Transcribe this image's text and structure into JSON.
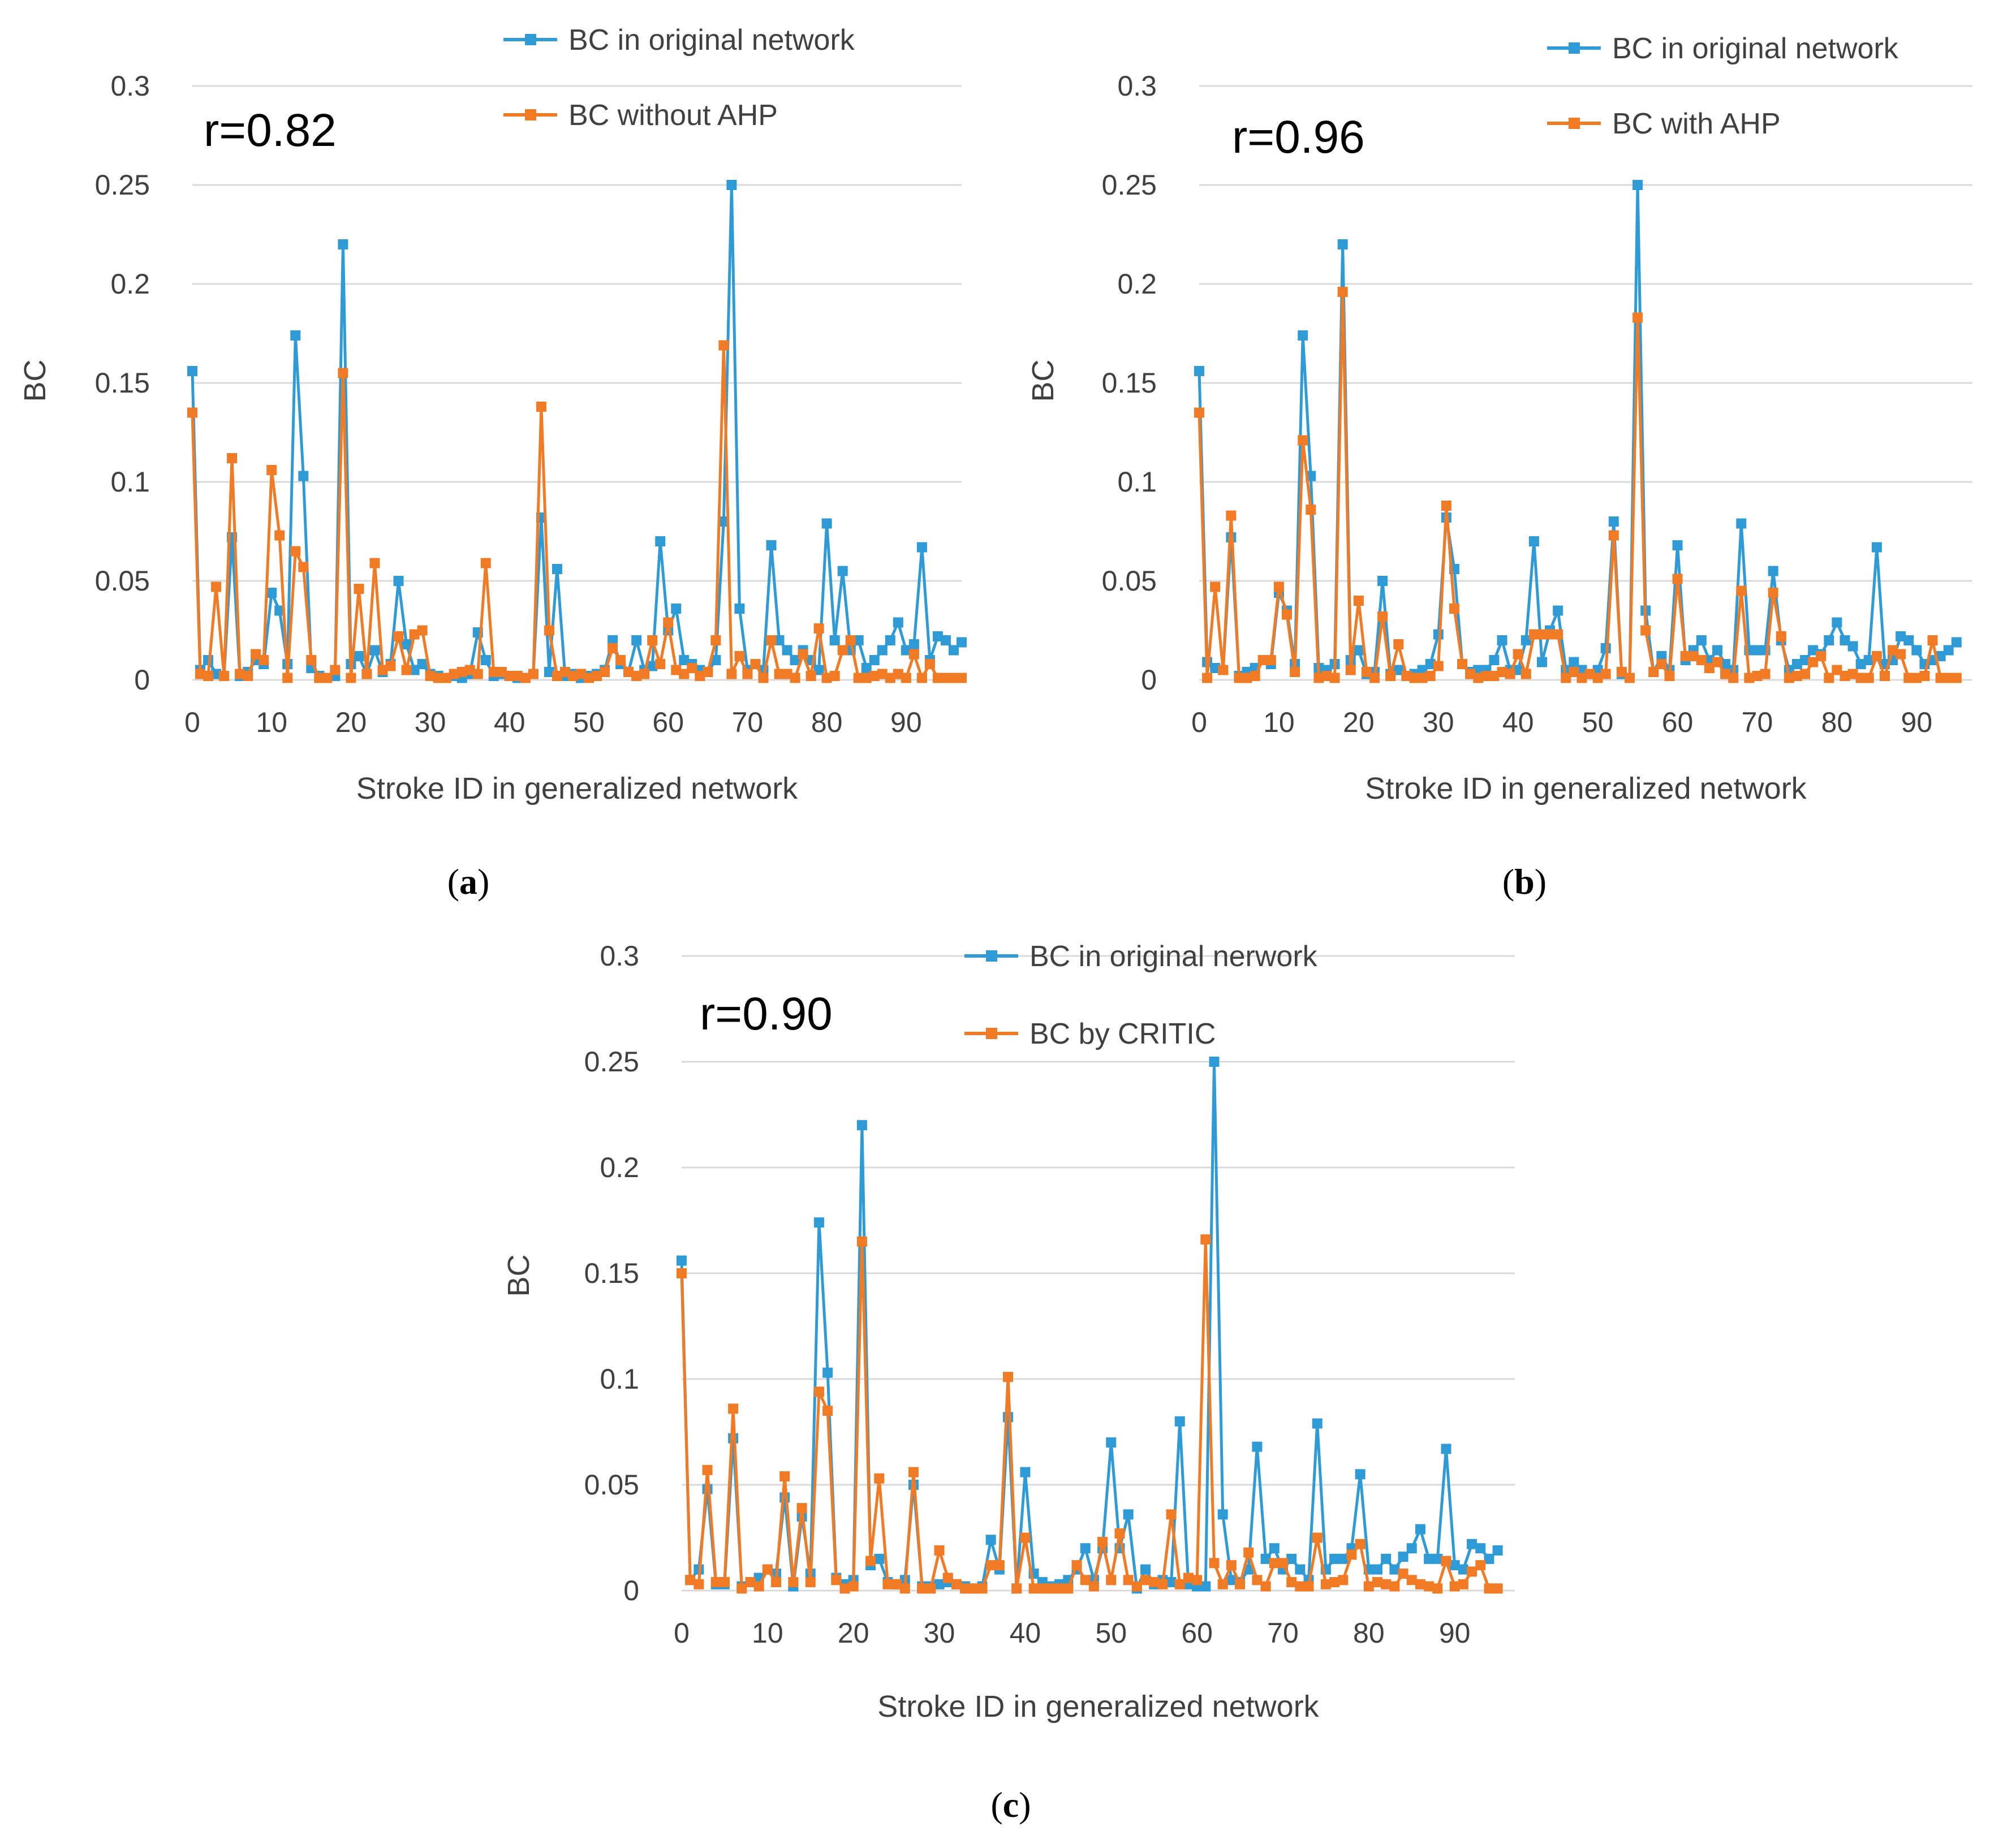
{
  "colors": {
    "original": "#2e9bd6",
    "comparison": "#f07b24",
    "grid": "#d9d9d9",
    "text": "#404040"
  },
  "chart_data": [
    {
      "type": "line",
      "panel": "a",
      "caption": {
        "open": "(",
        "letter": "a",
        "close": ")"
      },
      "annotation": "r=0.82",
      "xlabel": "Stroke ID in generalized network",
      "ylabel": "BC",
      "xlim": [
        0,
        97
      ],
      "ylim": [
        0,
        0.3
      ],
      "xticks": [
        0,
        10,
        20,
        30,
        40,
        50,
        60,
        70,
        80,
        90
      ],
      "yticks": [
        "0",
        "0.05",
        "0.1",
        "0.15",
        "0.2",
        "0.25",
        "0.3"
      ],
      "legend_position": "top-right",
      "series": [
        {
          "name": "BC in original network",
          "color_key": "original",
          "values": [
            0.156,
            0.005,
            0.01,
            0.003,
            0.002,
            0.072,
            0.002,
            0.004,
            0.01,
            0.008,
            0.044,
            0.035,
            0.008,
            0.174,
            0.103,
            0.006,
            0.002,
            0.001,
            0.002,
            0.22,
            0.008,
            0.012,
            0.003,
            0.015,
            0.004,
            0.008,
            0.05,
            0.018,
            0.005,
            0.008,
            0.003,
            0.002,
            0.001,
            0.002,
            0.001,
            0.003,
            0.024,
            0.01,
            0.002,
            0.003,
            0.002,
            0.001,
            0.001,
            0.003,
            0.082,
            0.004,
            0.056,
            0.002,
            0.003,
            0.001,
            0.002,
            0.003,
            0.005,
            0.02,
            0.008,
            0.004,
            0.02,
            0.005,
            0.007,
            0.07,
            0.025,
            0.036,
            0.01,
            0.008,
            0.005,
            0.004,
            0.01,
            0.08,
            0.25,
            0.036,
            0.005,
            0.008,
            0.005,
            0.068,
            0.02,
            0.015,
            0.01,
            0.015,
            0.01,
            0.005,
            0.079,
            0.02,
            0.055,
            0.015,
            0.02,
            0.006,
            0.01,
            0.015,
            0.02,
            0.029,
            0.015,
            0.018,
            0.067,
            0.01,
            0.022,
            0.02,
            0.015,
            0.019
          ]
        },
        {
          "name": "BC without AHP",
          "color_key": "comparison",
          "values": [
            0.135,
            0.003,
            0.002,
            0.047,
            0.002,
            0.112,
            0.003,
            0.002,
            0.013,
            0.01,
            0.106,
            0.073,
            0.001,
            0.065,
            0.057,
            0.01,
            0.001,
            0.001,
            0.005,
            0.155,
            0.001,
            0.046,
            0.003,
            0.059,
            0.005,
            0.007,
            0.022,
            0.005,
            0.023,
            0.025,
            0.002,
            0.001,
            0.001,
            0.003,
            0.004,
            0.005,
            0.003,
            0.059,
            0.004,
            0.004,
            0.002,
            0.002,
            0.001,
            0.003,
            0.138,
            0.025,
            0.002,
            0.004,
            0.002,
            0.003,
            0.001,
            0.002,
            0.004,
            0.016,
            0.01,
            0.004,
            0.002,
            0.003,
            0.02,
            0.008,
            0.029,
            0.005,
            0.003,
            0.006,
            0.002,
            0.004,
            0.02,
            0.169,
            0.003,
            0.012,
            0.003,
            0.008,
            0.001,
            0.02,
            0.003,
            0.003,
            0.001,
            0.013,
            0.002,
            0.026,
            0.001,
            0.002,
            0.015,
            0.02,
            0.001,
            0.001,
            0.002,
            0.003,
            0.001,
            0.003,
            0.001,
            0.013,
            0.001,
            0.008,
            0.001,
            0.001,
            0.001,
            0.001
          ]
        }
      ]
    },
    {
      "type": "line",
      "panel": "b",
      "caption": {
        "open": "(",
        "letter": "b",
        "close": ")"
      },
      "annotation": "r=0.96",
      "xlabel": "Stroke ID in generalized network",
      "ylabel": "BC",
      "xlim": [
        0,
        97
      ],
      "ylim": [
        0,
        0.3
      ],
      "xticks": [
        0,
        10,
        20,
        30,
        40,
        50,
        60,
        70,
        80,
        90
      ],
      "yticks": [
        "0",
        "0.05",
        "0.1",
        "0.15",
        "0.2",
        "0.25",
        "0.3"
      ],
      "legend_position": "top-right",
      "series": [
        {
          "name": "BC in original network",
          "color_key": "original",
          "values": [
            0.156,
            0.009,
            0.006,
            0.005,
            0.072,
            0.002,
            0.004,
            0.006,
            0.01,
            0.008,
            0.044,
            0.035,
            0.008,
            0.174,
            0.103,
            0.006,
            0.005,
            0.008,
            0.22,
            0.01,
            0.015,
            0.003,
            0.004,
            0.05,
            0.003,
            0.005,
            0.002,
            0.003,
            0.005,
            0.008,
            0.023,
            0.082,
            0.056,
            0.008,
            0.004,
            0.005,
            0.005,
            0.01,
            0.02,
            0.005,
            0.005,
            0.02,
            0.07,
            0.009,
            0.025,
            0.035,
            0.005,
            0.009,
            0.005,
            0.003,
            0.005,
            0.016,
            0.08,
            0.003,
            0.001,
            0.25,
            0.035,
            0.004,
            0.012,
            0.005,
            0.068,
            0.01,
            0.015,
            0.02,
            0.01,
            0.015,
            0.008,
            0.005,
            0.079,
            0.015,
            0.015,
            0.015,
            0.055,
            0.02,
            0.005,
            0.008,
            0.01,
            0.015,
            0.013,
            0.02,
            0.029,
            0.02,
            0.017,
            0.008,
            0.01,
            0.067,
            0.008,
            0.01,
            0.022,
            0.02,
            0.015,
            0.008,
            0.01,
            0.012,
            0.015,
            0.019
          ]
        },
        {
          "name": "BC with AHP",
          "color_key": "comparison",
          "values": [
            0.135,
            0.001,
            0.047,
            0.005,
            0.083,
            0.001,
            0.001,
            0.002,
            0.01,
            0.01,
            0.047,
            0.033,
            0.004,
            0.121,
            0.086,
            0.001,
            0.002,
            0.001,
            0.196,
            0.005,
            0.04,
            0.004,
            0.001,
            0.032,
            0.002,
            0.018,
            0.002,
            0.001,
            0.001,
            0.002,
            0.007,
            0.088,
            0.036,
            0.008,
            0.003,
            0.001,
            0.002,
            0.002,
            0.004,
            0.003,
            0.013,
            0.003,
            0.023,
            0.023,
            0.023,
            0.023,
            0.001,
            0.004,
            0.001,
            0.003,
            0.001,
            0.003,
            0.073,
            0.004,
            0.001,
            0.183,
            0.025,
            0.004,
            0.008,
            0.002,
            0.051,
            0.012,
            0.012,
            0.01,
            0.006,
            0.009,
            0.003,
            0.001,
            0.045,
            0.001,
            0.002,
            0.003,
            0.044,
            0.022,
            0.001,
            0.002,
            0.003,
            0.009,
            0.012,
            0.001,
            0.005,
            0.002,
            0.003,
            0.001,
            0.001,
            0.012,
            0.002,
            0.015,
            0.013,
            0.001,
            0.001,
            0.002,
            0.02,
            0.001,
            0.001,
            0.001
          ]
        }
      ]
    },
    {
      "type": "line",
      "panel": "c",
      "caption": {
        "open": "(",
        "letter": "c",
        "close": ")"
      },
      "annotation": "r=0.90",
      "xlabel": "Stroke ID in generalized network",
      "ylabel": "BC",
      "xlim": [
        0,
        97
      ],
      "ylim": [
        0,
        0.3
      ],
      "xticks": [
        0,
        10,
        20,
        30,
        40,
        50,
        60,
        70,
        80,
        90
      ],
      "yticks": [
        "0",
        "0.05",
        "0.1",
        "0.15",
        "0.2",
        "0.25",
        "0.3"
      ],
      "legend_position": "top-right",
      "series": [
        {
          "name": "BC in original nerwork",
          "color_key": "original",
          "values": [
            0.156,
            0.005,
            0.01,
            0.048,
            0.003,
            0.003,
            0.072,
            0.002,
            0.004,
            0.006,
            0.01,
            0.008,
            0.044,
            0.002,
            0.035,
            0.008,
            0.174,
            0.103,
            0.006,
            0.003,
            0.005,
            0.22,
            0.012,
            0.015,
            0.004,
            0.003,
            0.005,
            0.05,
            0.002,
            0.002,
            0.003,
            0.004,
            0.003,
            0.002,
            0.001,
            0.002,
            0.024,
            0.01,
            0.082,
            0.001,
            0.056,
            0.008,
            0.004,
            0.002,
            0.003,
            0.005,
            0.01,
            0.02,
            0.005,
            0.02,
            0.07,
            0.02,
            0.036,
            0.001,
            0.01,
            0.003,
            0.005,
            0.004,
            0.08,
            0.003,
            0.002,
            0.002,
            0.25,
            0.036,
            0.005,
            0.004,
            0.01,
            0.068,
            0.015,
            0.02,
            0.01,
            0.015,
            0.01,
            0.005,
            0.079,
            0.01,
            0.015,
            0.015,
            0.02,
            0.055,
            0.01,
            0.01,
            0.015,
            0.01,
            0.016,
            0.02,
            0.029,
            0.015,
            0.015,
            0.067,
            0.012,
            0.01,
            0.022,
            0.02,
            0.015,
            0.019
          ]
        },
        {
          "name": "BC by CRITIC",
          "color_key": "comparison",
          "values": [
            0.15,
            0.005,
            0.003,
            0.057,
            0.004,
            0.004,
            0.086,
            0.001,
            0.004,
            0.002,
            0.01,
            0.004,
            0.054,
            0.004,
            0.039,
            0.004,
            0.094,
            0.085,
            0.005,
            0.001,
            0.002,
            0.165,
            0.014,
            0.053,
            0.003,
            0.003,
            0.001,
            0.056,
            0.001,
            0.001,
            0.019,
            0.006,
            0.003,
            0.001,
            0.001,
            0.001,
            0.012,
            0.012,
            0.101,
            0.001,
            0.025,
            0.001,
            0.001,
            0.001,
            0.001,
            0.001,
            0.012,
            0.005,
            0.002,
            0.023,
            0.005,
            0.027,
            0.005,
            0.002,
            0.005,
            0.004,
            0.003,
            0.036,
            0.003,
            0.006,
            0.005,
            0.166,
            0.013,
            0.003,
            0.012,
            0.003,
            0.018,
            0.005,
            0.002,
            0.013,
            0.013,
            0.004,
            0.002,
            0.002,
            0.025,
            0.003,
            0.004,
            0.005,
            0.017,
            0.022,
            0.002,
            0.004,
            0.003,
            0.002,
            0.008,
            0.005,
            0.003,
            0.002,
            0.001,
            0.014,
            0.002,
            0.003,
            0.009,
            0.012,
            0.001,
            0.001
          ]
        }
      ]
    }
  ]
}
